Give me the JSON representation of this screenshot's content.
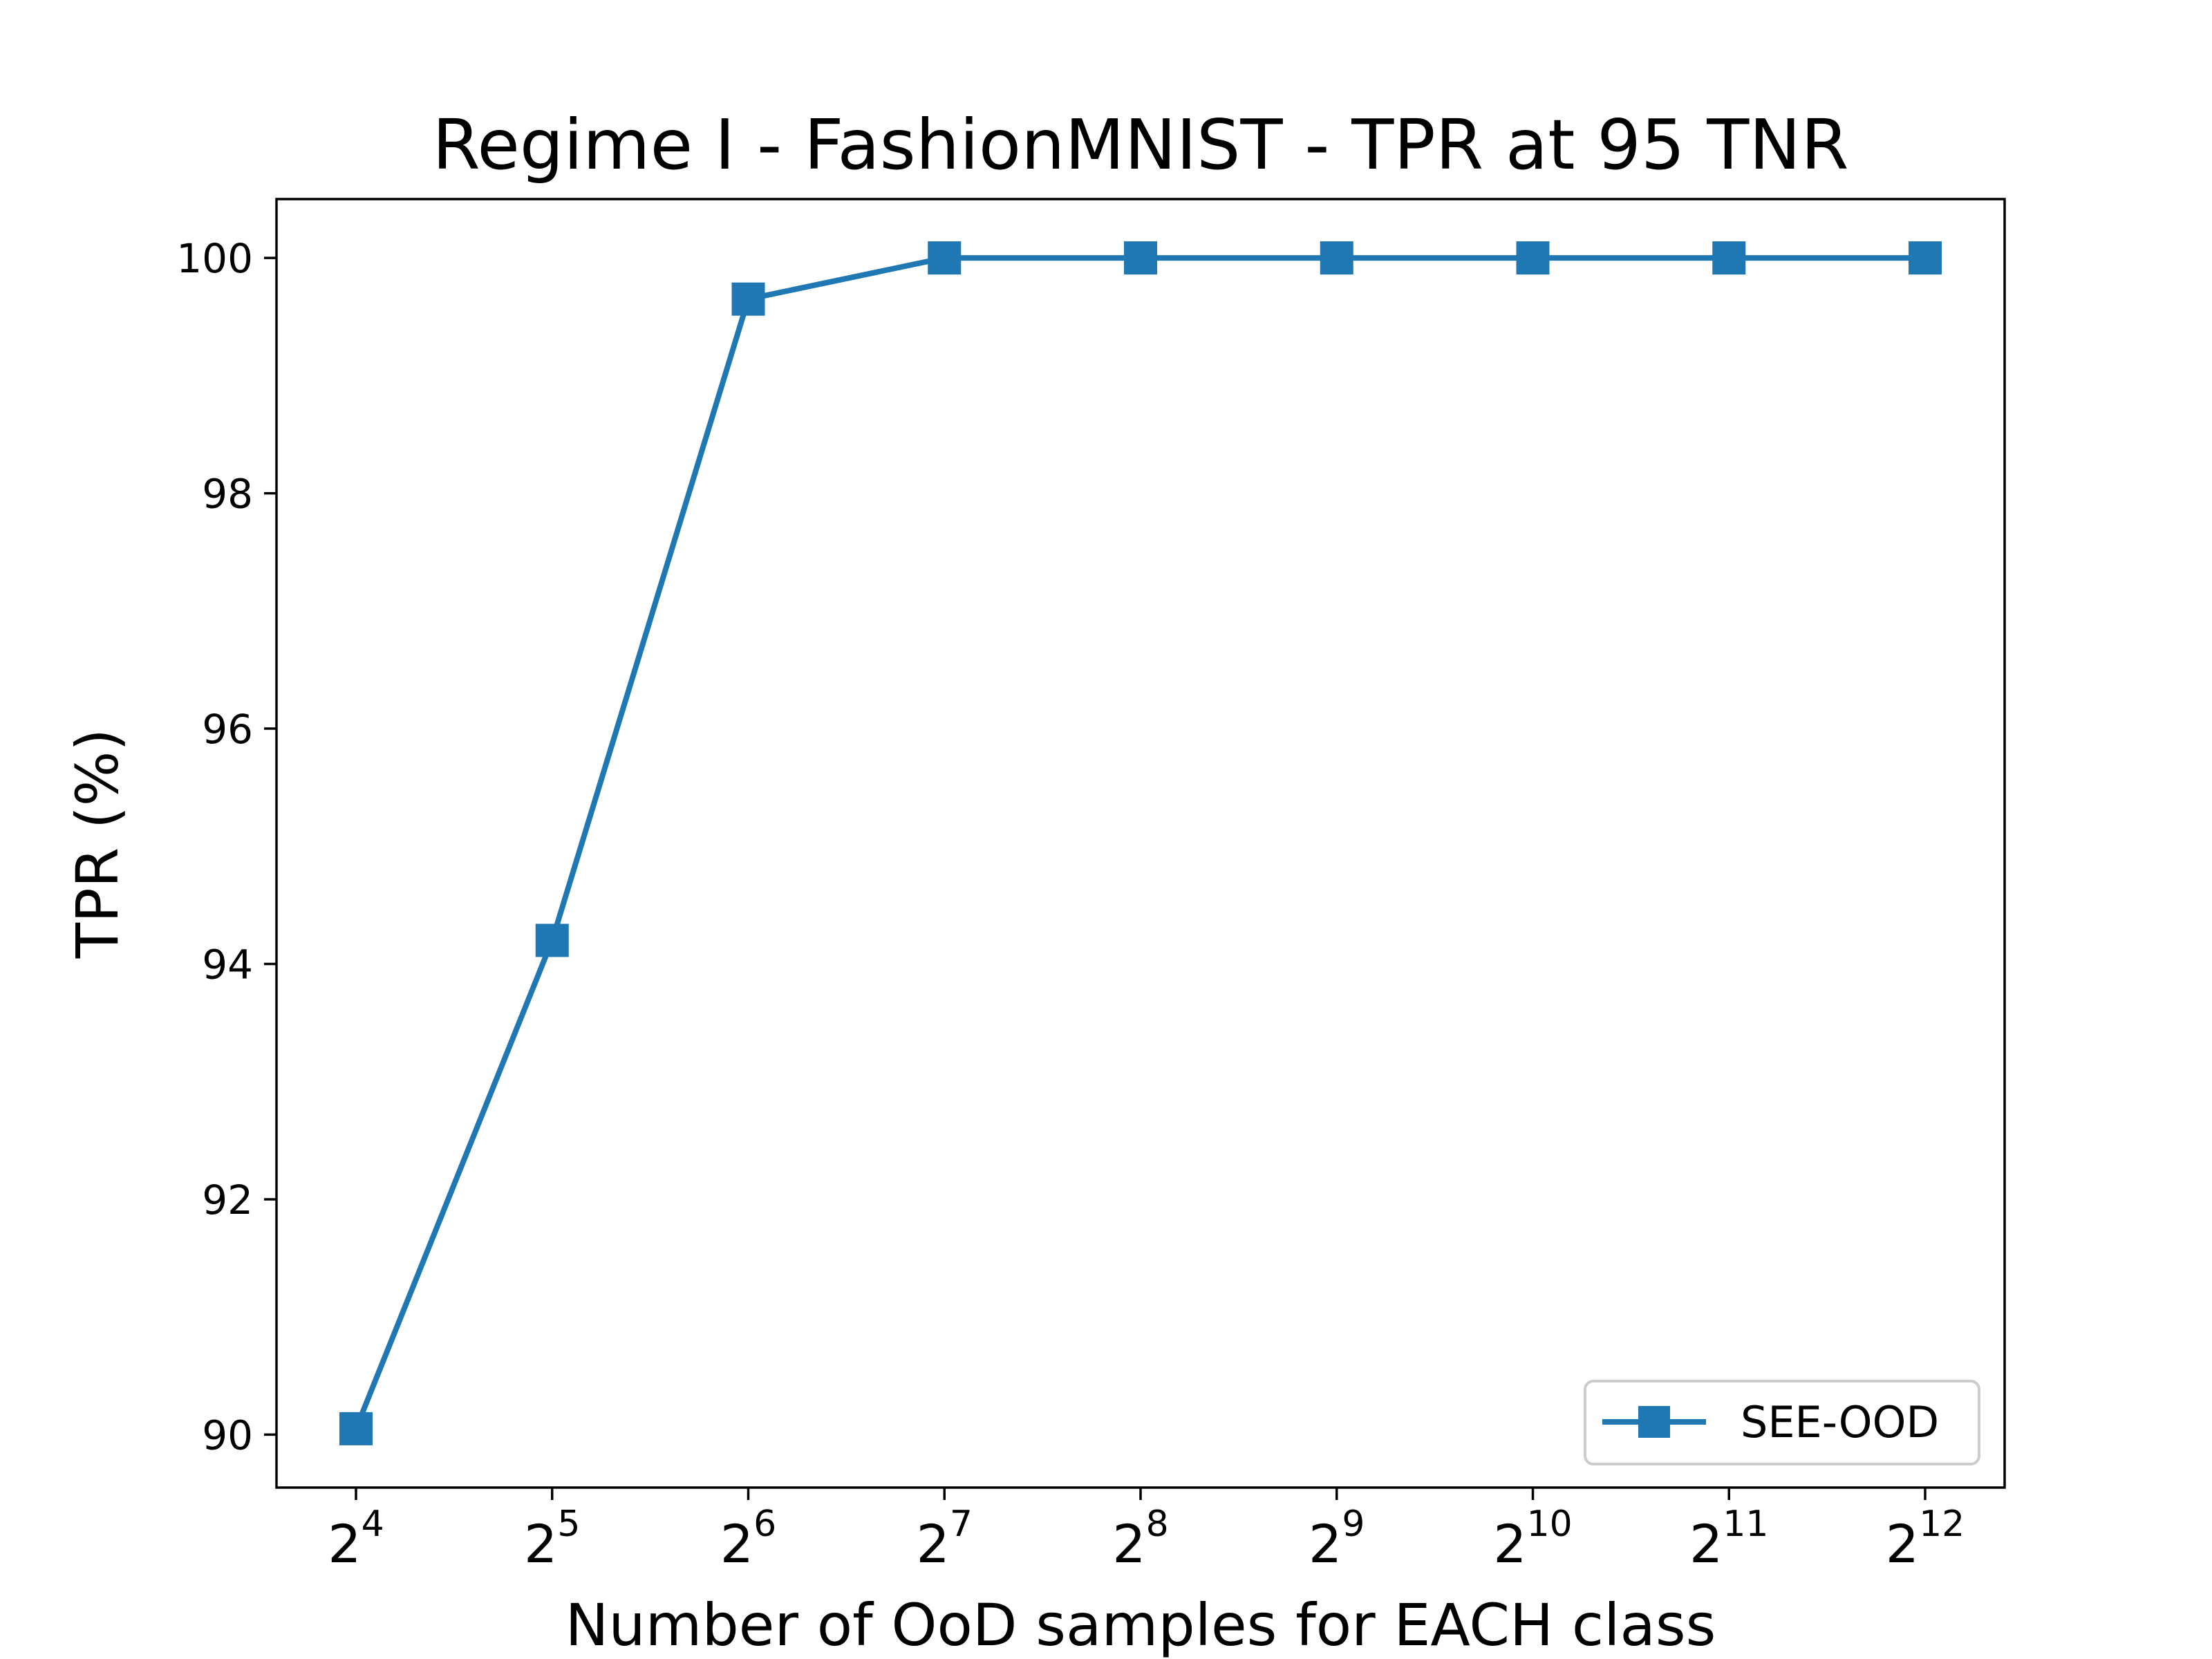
{
  "chart_data": {
    "type": "line",
    "title": "Regime I - FashionMNIST - TPR at 95 TNR",
    "xlabel": "Number of OoD samples for EACH class",
    "ylabel": "TPR (%)",
    "x": [
      {
        "base": "2",
        "exp": "4"
      },
      {
        "base": "2",
        "exp": "5"
      },
      {
        "base": "2",
        "exp": "6"
      },
      {
        "base": "2",
        "exp": "7"
      },
      {
        "base": "2",
        "exp": "8"
      },
      {
        "base": "2",
        "exp": "9"
      },
      {
        "base": "2",
        "exp": "10"
      },
      {
        "base": "2",
        "exp": "11"
      },
      {
        "base": "2",
        "exp": "12"
      }
    ],
    "x_scale": "log2",
    "yticks": [
      "90",
      "92",
      "94",
      "96",
      "98",
      "100"
    ],
    "ylim": [
      89.55,
      100.5
    ],
    "grid": false,
    "legend_position": "lower-right",
    "series": [
      {
        "name": "SEE-OOD",
        "color": "#1f77b4",
        "marker": "square",
        "values": [
          90.05,
          94.2,
          99.65,
          100.0,
          100.0,
          100.0,
          100.0,
          100.0,
          100.0
        ]
      }
    ]
  }
}
